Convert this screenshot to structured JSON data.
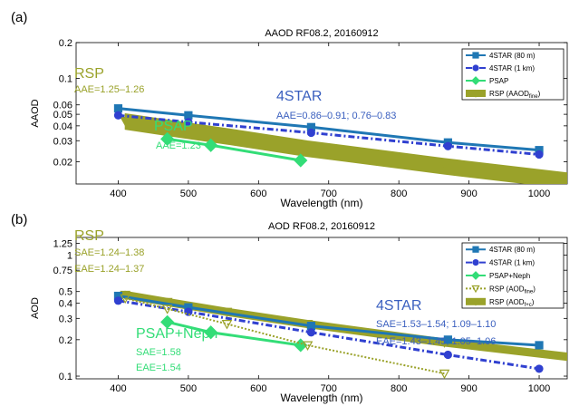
{
  "chart_data": [
    {
      "panel_label": "(a)",
      "type": "line",
      "title": "AAOD RF08.2, 20160912",
      "xlabel": "Wavelength (nm)",
      "ylabel": "AAOD",
      "xlim": [
        340,
        1040
      ],
      "ylim": [
        0.013,
        0.2
      ],
      "yscale": "log",
      "xticks": [
        400,
        500,
        600,
        700,
        800,
        900,
        1000
      ],
      "xtick_labels": [
        "400",
        "500",
        "600",
        "700",
        "800",
        "900",
        "1000"
      ],
      "yticks": [
        0.02,
        0.03,
        0.04,
        0.05,
        0.06,
        0.1,
        0.2
      ],
      "ytick_labels": [
        "0.02",
        "0.03",
        "0.04",
        "0.05",
        "0.06",
        "0.1",
        "0.2"
      ],
      "legend_position": "top-right",
      "series": [
        {
          "name": "4STAR (80 m)",
          "color": "#1f77b4",
          "style": "solid",
          "marker": "square",
          "marker_filled": true,
          "x": [
            400,
            500,
            675,
            870,
            1000
          ],
          "y": [
            0.056,
            0.049,
            0.039,
            0.029,
            0.025
          ]
        },
        {
          "name": "4STAR (1 km)",
          "color": "#3040d0",
          "style": "dashdot",
          "marker": "circle",
          "marker_filled": true,
          "x": [
            400,
            500,
            675,
            870,
            1000
          ],
          "y": [
            0.049,
            0.043,
            0.035,
            0.027,
            0.023
          ]
        },
        {
          "name": "PSAP",
          "color": "#33dd77",
          "style": "solid",
          "marker": "diamond",
          "marker_filled": true,
          "x": [
            470,
            532,
            660
          ],
          "y": [
            0.031,
            0.0275,
            0.0205
          ]
        },
        {
          "name": "RSP (AAOD",
          "name_sub": "fine",
          "name_suffix": ")",
          "color": "#9aa22a",
          "style": "band",
          "marker": "triangle-down",
          "marker_filled": true,
          "x": [
            410,
            470,
            555,
            670,
            865,
            1040
          ],
          "y": [
            0.044,
            0.039,
            0.033,
            0.026,
            0.0185,
            0.014
          ],
          "band_factor": 0.15
        }
      ],
      "annotations": [
        {
          "text": "RSP",
          "color": "#9aa22a",
          "size": "large"
        },
        {
          "text": "AAE=1.25–1.26",
          "color": "#9aa22a",
          "size": "small"
        },
        {
          "text": "4STAR",
          "color": "#3a5fbf",
          "size": "large"
        },
        {
          "text": "AAE=0.86–0.91; 0.76–0.83",
          "color": "#3a5fbf",
          "size": "small"
        },
        {
          "text": "PSAP",
          "color": "#33dd77",
          "size": "large"
        },
        {
          "text": "AAE=1.23",
          "color": "#33dd77",
          "size": "small"
        }
      ]
    },
    {
      "panel_label": "(b)",
      "type": "line",
      "title": "AOD RF08.2, 20160912",
      "xlabel": "Wavelength (nm)",
      "ylabel": "AOD",
      "xlim": [
        340,
        1040
      ],
      "ylim": [
        0.095,
        1.4
      ],
      "yscale": "log",
      "xticks": [
        400,
        500,
        600,
        700,
        800,
        900,
        1000
      ],
      "xtick_labels": [
        "400",
        "500",
        "600",
        "700",
        "800",
        "900",
        "1000"
      ],
      "yticks": [
        0.1,
        0.2,
        0.3,
        0.4,
        0.5,
        0.75,
        1,
        1.25
      ],
      "ytick_labels": [
        "0.1",
        "0.2",
        "0.3",
        "0.4",
        "0.5",
        "0.75",
        "1",
        "1.25"
      ],
      "legend_position": "top-right",
      "series": [
        {
          "name": "4STAR (80 m)",
          "color": "#1f77b4",
          "style": "solid",
          "marker": "square",
          "marker_filled": true,
          "x": [
            400,
            500,
            675,
            870,
            1000
          ],
          "y": [
            0.46,
            0.37,
            0.26,
            0.2,
            0.18
          ]
        },
        {
          "name": "4STAR (1 km)",
          "color": "#3040d0",
          "style": "dashdot",
          "marker": "circle",
          "marker_filled": true,
          "x": [
            400,
            500,
            675,
            870,
            1000
          ],
          "y": [
            0.42,
            0.34,
            0.23,
            0.15,
            0.115
          ]
        },
        {
          "name": "PSAP+Neph",
          "color": "#33dd77",
          "style": "solid",
          "marker": "diamond",
          "marker_filled": true,
          "x": [
            470,
            532,
            660
          ],
          "y": [
            0.28,
            0.23,
            0.18
          ]
        },
        {
          "name": "RSP (AOD",
          "name_sub": "fine",
          "name_suffix": ")",
          "color": "#9aa22a",
          "style": "dotted",
          "marker": "triangle-down",
          "marker_filled": false,
          "x": [
            410,
            470,
            555,
            670,
            865
          ],
          "y": [
            0.44,
            0.36,
            0.27,
            0.18,
            0.105
          ]
        },
        {
          "name": "RSP (AOD",
          "name_sub": "f+c",
          "name_suffix": ")",
          "color": "#9aa22a",
          "style": "band",
          "marker": "triangle-down",
          "marker_filled": true,
          "x": [
            410,
            470,
            555,
            670,
            865,
            1040
          ],
          "y": [
            0.47,
            0.41,
            0.34,
            0.27,
            0.19,
            0.145
          ],
          "band_factor": 0.07
        }
      ],
      "annotations": [
        {
          "text": "RSP",
          "color": "#9aa22a",
          "size": "large"
        },
        {
          "text": "SAE=1.24–1.38",
          "color": "#9aa22a",
          "size": "small"
        },
        {
          "text": "EAE=1.24–1.37",
          "color": "#9aa22a",
          "size": "small"
        },
        {
          "text": "4STAR",
          "color": "#3a5fbf",
          "size": "large"
        },
        {
          "text": "SAE=1.53–1.54; 1.09–1.10",
          "color": "#3a5fbf",
          "size": "small"
        },
        {
          "text": "EAE=1.43–1.45; 1.05–1.06",
          "color": "#3a5fbf",
          "size": "small"
        },
        {
          "text": "PSAP+Neph",
          "color": "#33dd77",
          "size": "large"
        },
        {
          "text": "SAE=1.58",
          "color": "#33dd77",
          "size": "small"
        },
        {
          "text": "EAE=1.54",
          "color": "#33dd77",
          "size": "small"
        }
      ]
    }
  ]
}
